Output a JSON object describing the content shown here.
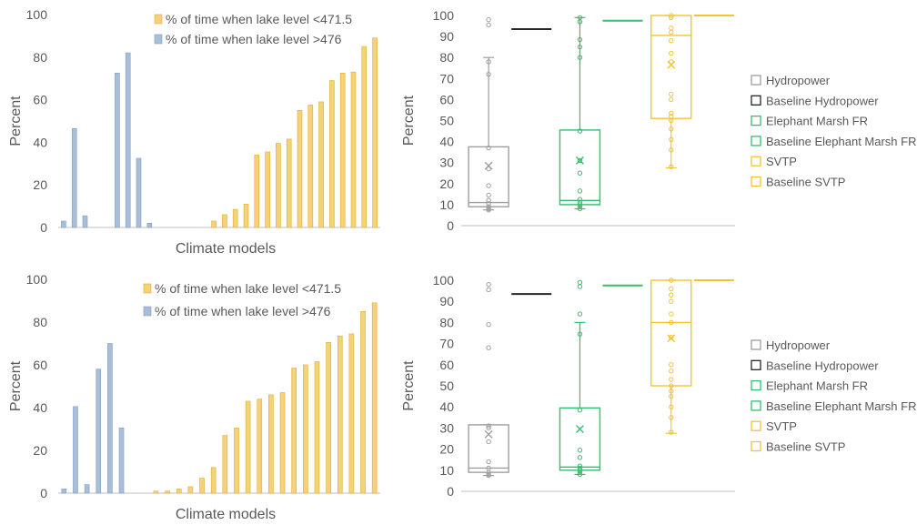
{
  "colors": {
    "gold_fill": "#f5d27a",
    "gold_edge": "#e0ad33",
    "blue_fill": "#a9bfd9",
    "blue_edge": "#7f9dc2",
    "grey": "#9e9e9e",
    "black": "#262626",
    "green": "#33bf6f",
    "yellow": "#f3c430",
    "axis": "#bfbfbf",
    "text": "#595959"
  },
  "chart_data": [
    {
      "type": "bar",
      "xlabel": "Climate models",
      "ylabel": "Percent",
      "ylim": [
        0,
        100
      ],
      "yticks": [
        0,
        20,
        40,
        60,
        80,
        100
      ],
      "legend_placement": "top",
      "series": [
        {
          "name": "% of time when lake level <471.5",
          "color": "gold",
          "values": [
            0,
            0,
            0,
            0,
            0,
            0,
            0,
            0,
            0,
            0,
            0,
            0,
            0,
            0,
            3,
            6,
            8.5,
            11,
            34,
            35.5,
            39.5,
            41.5,
            55,
            57.5,
            59,
            69,
            72.5,
            73,
            85,
            89
          ]
        },
        {
          "name": "% of time when lake level >476",
          "color": "blue",
          "values": [
            3,
            46.5,
            5.5,
            0,
            0,
            72.5,
            82,
            32.5,
            2,
            0,
            0,
            0,
            0,
            0,
            0,
            0,
            0,
            0,
            0,
            0,
            0,
            0,
            0,
            0,
            0,
            0,
            0,
            0,
            0,
            0
          ]
        }
      ]
    },
    {
      "type": "box",
      "ylabel": "Percent",
      "ylim": [
        0,
        100
      ],
      "yticks": [
        0,
        10,
        20,
        30,
        40,
        50,
        60,
        70,
        80,
        90,
        100
      ],
      "legend_placement": "right",
      "legend": [
        "Hydropower",
        "Baseline Hydropower",
        "Elephant Marsh FR",
        "Baseline Elephant Marsh FR",
        "SVTP",
        "Baseline SVTP"
      ],
      "boxes": [
        {
          "name": "Hydropower",
          "color": "grey",
          "q1": 9,
          "median": 11,
          "q3": 37.5,
          "whisker_low": 7.5,
          "whisker_high": 80,
          "mean": 28.5,
          "points": [
            7.5,
            8,
            9,
            10.5,
            12,
            14.5,
            19,
            27,
            37,
            72,
            78,
            95.5,
            98
          ]
        },
        {
          "name": "Elephant Marsh FR",
          "color": "green",
          "q1": 10,
          "median": 12,
          "q3": 45.5,
          "whisker_low": 8,
          "whisker_high": 99,
          "mean": 31,
          "points": [
            8,
            9,
            10,
            11,
            12.5,
            16.5,
            25,
            31,
            45,
            80,
            85,
            88.5,
            97,
            99
          ]
        },
        {
          "name": "SVTP",
          "color": "yellow",
          "q1": 51,
          "median": 90.5,
          "q3": 100,
          "whisker_low": 27.5,
          "whisker_high": 100,
          "mean": 76.5,
          "points": [
            28,
            36,
            41,
            46,
            50,
            52,
            53.5,
            60,
            62.5,
            78,
            82,
            88,
            92,
            94,
            99,
            100
          ]
        }
      ],
      "baselines": [
        {
          "name": "Baseline Hydropower",
          "color": "black",
          "value": 93.5
        },
        {
          "name": "Baseline Elephant Marsh FR",
          "color": "green",
          "value": 97.5
        },
        {
          "name": "Baseline SVTP",
          "color": "yellow",
          "value": 100
        }
      ]
    },
    {
      "type": "bar",
      "xlabel": "Climate models",
      "ylabel": "Percent",
      "ylim": [
        0,
        100
      ],
      "yticks": [
        0,
        20,
        40,
        60,
        80,
        100
      ],
      "legend_placement": "top",
      "series": [
        {
          "name": "% of time when lake level <471.5",
          "color": "gold",
          "values": [
            0,
            0,
            0,
            0,
            0,
            0,
            0,
            0,
            1,
            1,
            2,
            3,
            7,
            12,
            27,
            30.5,
            43,
            44,
            46,
            47,
            58.5,
            60,
            61.5,
            70.5,
            73.5,
            74.5,
            85,
            89
          ]
        },
        {
          "name": "% of time when lake level >476",
          "color": "blue",
          "values": [
            2,
            40.5,
            4,
            58,
            70,
            30.5,
            0,
            0,
            0,
            0,
            0,
            0,
            0,
            0,
            0,
            0,
            0,
            0,
            0,
            0,
            0,
            0,
            0,
            0,
            0,
            0,
            0,
            0
          ]
        }
      ]
    },
    {
      "type": "box",
      "ylabel": "Percent",
      "ylim": [
        0,
        100
      ],
      "yticks": [
        0,
        10,
        20,
        30,
        40,
        50,
        60,
        70,
        80,
        90,
        100
      ],
      "legend_placement": "right",
      "legend": [
        "Hydropower",
        "Baseline Hydropower",
        "Elephant Marsh FR",
        "Baseline Elephant Marsh FR",
        "SVTP",
        "Baseline SVTP"
      ],
      "boxes": [
        {
          "name": "Hydropower",
          "color": "grey",
          "q1": 9,
          "median": 11,
          "q3": 31.5,
          "whisker_low": 7.5,
          "whisker_high": 31.5,
          "mean": 27,
          "points": [
            7.5,
            8,
            9,
            11,
            14,
            23.5,
            30,
            31,
            68,
            79,
            95.5,
            98
          ]
        },
        {
          "name": "Elephant Marsh FR",
          "color": "green",
          "q1": 10,
          "median": 11.5,
          "q3": 39.5,
          "whisker_low": 8,
          "whisker_high": 80,
          "mean": 29.5,
          "points": [
            8,
            9,
            10,
            11,
            12,
            16,
            19.5,
            38.5,
            74.5,
            84,
            97,
            99
          ]
        },
        {
          "name": "SVTP",
          "color": "yellow",
          "q1": 50,
          "median": 80,
          "q3": 100,
          "whisker_low": 27.5,
          "whisker_high": 100,
          "mean": 72.5,
          "points": [
            28,
            35,
            40,
            45,
            47.5,
            50,
            53,
            57,
            60,
            73,
            80,
            84,
            90,
            93,
            96,
            100
          ]
        }
      ],
      "baselines": [
        {
          "name": "Baseline Hydropower",
          "color": "black",
          "value": 93.5
        },
        {
          "name": "Baseline Elephant Marsh FR",
          "color": "green",
          "value": 97.5
        },
        {
          "name": "Baseline SVTP",
          "color": "yellow",
          "value": 100
        }
      ]
    }
  ]
}
